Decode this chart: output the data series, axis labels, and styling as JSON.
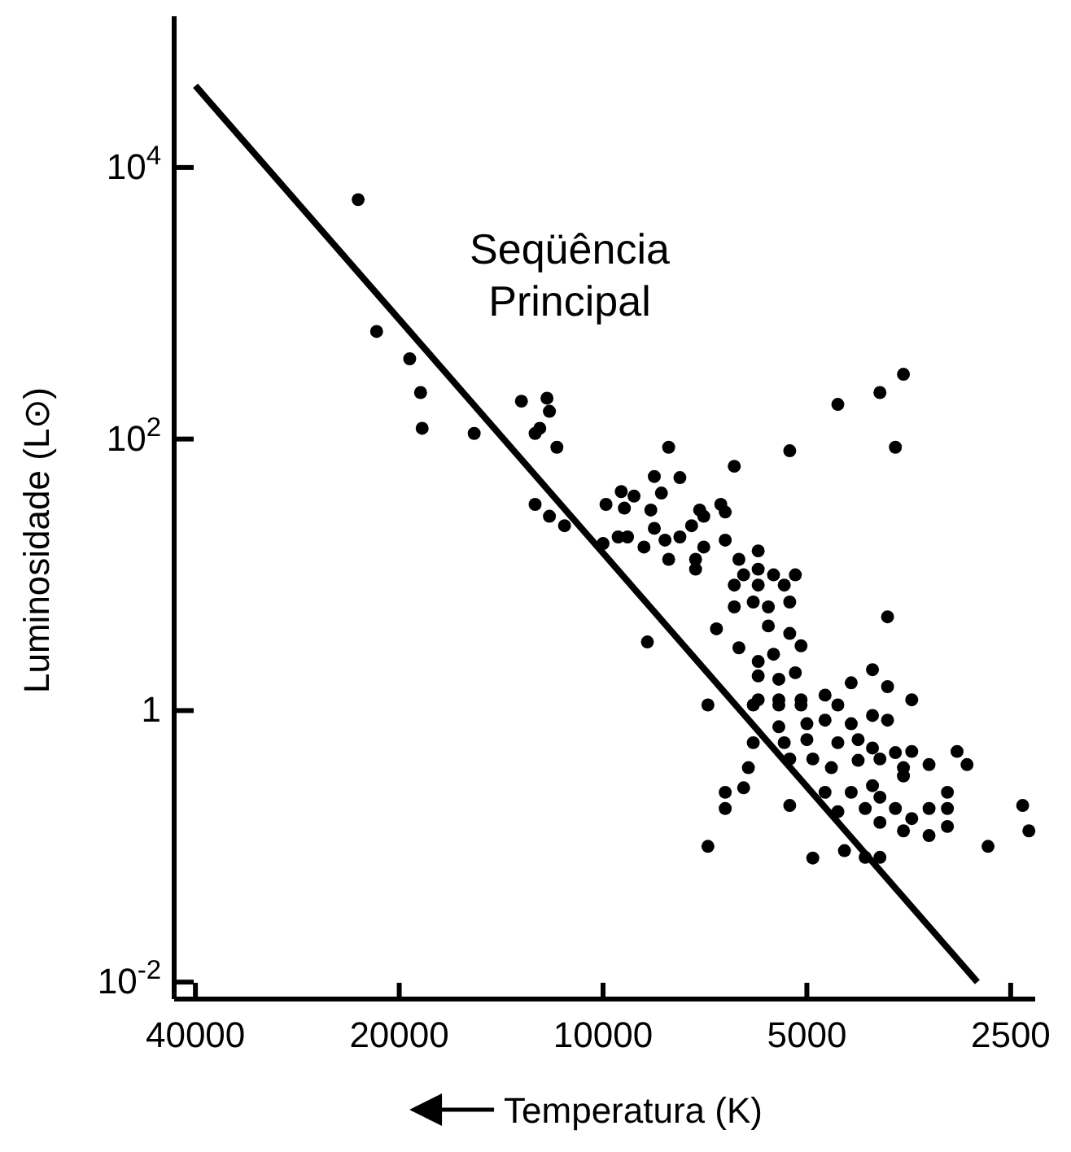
{
  "chart_data": {
    "type": "scatter",
    "xlabel": "Temperatura (K)",
    "ylabel": "Luminosidade (L⊙)",
    "annotations": [
      "Seqüência Principal"
    ],
    "log": "xy",
    "grid": false,
    "marker": "circle",
    "xlim": [
      43000,
      2300
    ],
    "xticks": [
      40000,
      20000,
      10000,
      5000,
      2500
    ],
    "ylim": [
      0.0075,
      130000
    ],
    "yticks": [
      {
        "value": 10000,
        "label": "10$^{4}$"
      },
      {
        "value": 100,
        "label": "10$^{2}$"
      },
      1,
      {
        "value": 0.01,
        "label": "10$^{-2}$"
      }
    ],
    "series": [
      {
        "type": "line",
        "marker": "none",
        "color": "#000000",
        "x": [
          40000,
          2800
        ],
        "values": [
          40000,
          0.01
        ]
      },
      {
        "color": "#000000",
        "x": [
          23000,
          21600,
          19300,
          18600,
          18500,
          15500,
          13200,
          12100,
          12000,
          12400,
          12600,
          11700,
          8000,
          12600,
          12000,
          11400,
          5300,
          6400,
          8400,
          7700,
          9400,
          9000,
          8200,
          9900,
          9300,
          8500,
          7200,
          6700,
          6600,
          9500,
          10000,
          9200,
          8400,
          8100,
          7700,
          7400,
          7100,
          8700,
          7100,
          6600,
          8000,
          7300,
          7300,
          5900,
          6300,
          6200,
          5900,
          5600,
          5200,
          6400,
          5900,
          5400,
          6400,
          6000,
          5700,
          5300,
          6800,
          5700,
          5300,
          8600,
          6300,
          5100,
          5900,
          5600,
          5900,
          5500,
          5200,
          7000,
          5900,
          5500,
          5100,
          3600,
          3900,
          4500,
          3700,
          3800,
          4000,
          4300,
          3800,
          3500,
          6000,
          5500,
          5100,
          4700,
          4500,
          5500,
          5000,
          4700,
          4300,
          4000,
          3800,
          6000,
          5400,
          5000,
          4500,
          4200,
          4000,
          3700,
          3500,
          5300,
          4900,
          4600,
          4200,
          3900,
          3600,
          3300,
          3000,
          2900,
          6100,
          6600,
          6200,
          4700,
          4300,
          4000,
          3900,
          3600,
          3100,
          6600,
          5300,
          4500,
          4100,
          3700,
          3500,
          3300,
          3100,
          2400,
          3900,
          3600,
          3300,
          3100,
          2350,
          7000,
          4900,
          4400,
          4100,
          3900,
          2700
        ],
        "values": [
          5800,
          620,
          390,
          220,
          120,
          110,
          190,
          200,
          160,
          120,
          110,
          87,
          87,
          33,
          27,
          23,
          82,
          63,
          53,
          52,
          41,
          38,
          40,
          33,
          31,
          30,
          30,
          33,
          29,
          19,
          17,
          19,
          22,
          18,
          19,
          23,
          27,
          16,
          16,
          18,
          13,
          13,
          11,
          15,
          13,
          10,
          11,
          10,
          10,
          8.4,
          8.4,
          8.4,
          5.8,
          6.3,
          5.8,
          6.3,
          4.0,
          4.2,
          3.7,
          3.2,
          2.9,
          3.0,
          2.3,
          2.6,
          1.8,
          1.7,
          1.9,
          1.1,
          1.2,
          1.2,
          1.2,
          300,
          220,
          180,
          87,
          4.9,
          2.0,
          1.6,
          1.5,
          1.2,
          1.1,
          1.1,
          1.1,
          1.3,
          1.1,
          0.76,
          0.8,
          0.85,
          0.8,
          0.92,
          0.85,
          0.58,
          0.58,
          0.61,
          0.58,
          0.61,
          0.53,
          0.49,
          0.5,
          0.44,
          0.44,
          0.38,
          0.43,
          0.44,
          0.38,
          0.4,
          0.5,
          0.4,
          0.38,
          0.25,
          0.27,
          0.25,
          0.25,
          0.28,
          0.23,
          0.33,
          0.25,
          0.19,
          0.2,
          0.18,
          0.19,
          0.19,
          0.16,
          0.19,
          0.19,
          0.2,
          0.15,
          0.13,
          0.12,
          0.14,
          0.13,
          0.1,
          0.082,
          0.093,
          0.083,
          0.083,
          0.1
        ]
      }
    ]
  }
}
